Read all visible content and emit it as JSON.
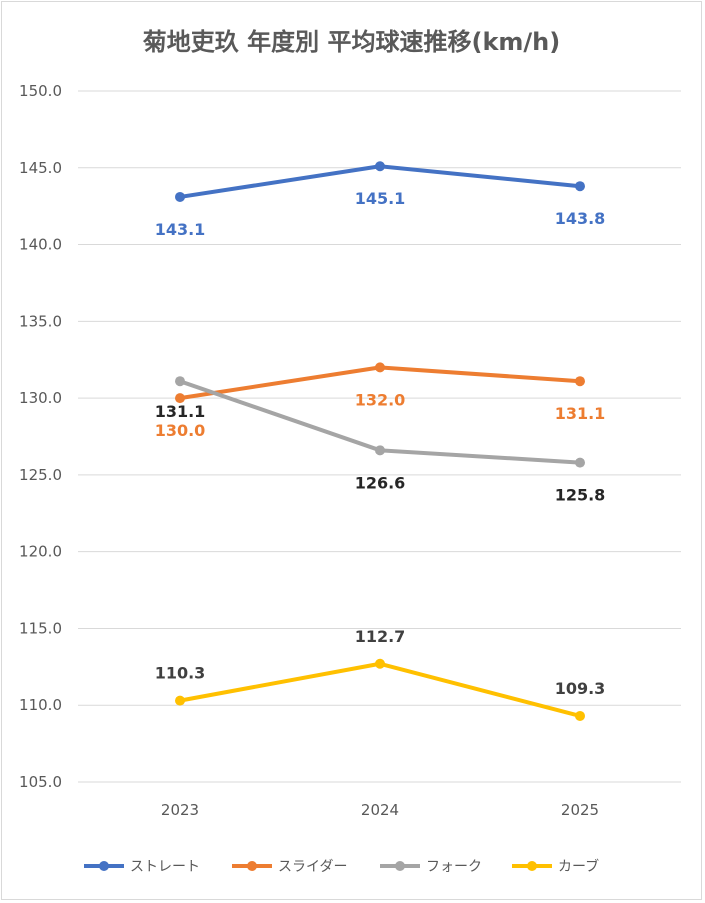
{
  "chart_data": {
    "type": "line",
    "title": "菊地吏玖 年度別 平均球速推移(km/h)",
    "categories": [
      "2023",
      "2024",
      "2025"
    ],
    "ylim": [
      105,
      150
    ],
    "yticks": [
      "105.0",
      "110.0",
      "115.0",
      "120.0",
      "125.0",
      "130.0",
      "135.0",
      "140.0",
      "145.0",
      "150.0"
    ],
    "grid": true,
    "legend_position": "bottom",
    "series": [
      {
        "name": "ストレート",
        "values": [
          143.1,
          145.1,
          143.8
        ],
        "labels": [
          "143.1",
          "145.1",
          "143.8"
        ],
        "color": "#4472C4",
        "label_color": "#4472C4",
        "label_pos": "below"
      },
      {
        "name": "スライダー",
        "values": [
          130.0,
          132.0,
          131.1
        ],
        "labels": [
          "130.0",
          "132.0",
          "131.1"
        ],
        "color": "#ED7D31",
        "label_color": "#ED7D31",
        "label_pos": "below"
      },
      {
        "name": "フォーク",
        "values": [
          131.1,
          126.6,
          125.8
        ],
        "labels": [
          "131.1",
          "126.6",
          "125.8"
        ],
        "color": "#A5A5A5",
        "label_color": "#262626",
        "label_pos": "below"
      },
      {
        "name": "カーブ",
        "values": [
          110.3,
          112.7,
          109.3
        ],
        "labels": [
          "110.3",
          "112.7",
          "109.3"
        ],
        "color": "#FFC000",
        "label_color": "#404040",
        "label_pos": "above"
      }
    ]
  }
}
